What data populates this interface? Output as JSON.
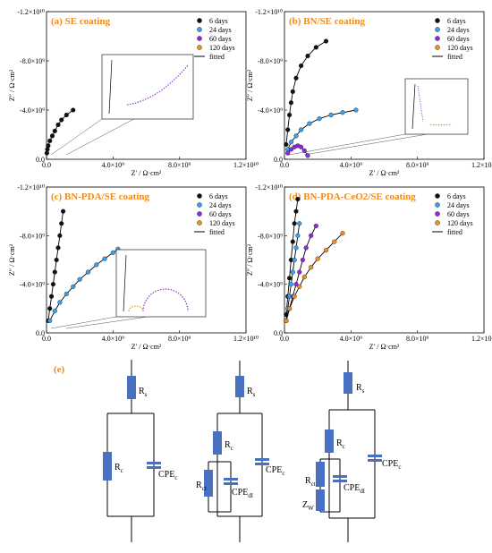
{
  "colors": {
    "6 days": "#111111",
    "24 days": "#3aa0ea",
    "60 days": "#8a2be2",
    "120 days": "#f0901c",
    "title": "#f28a1a",
    "element": "#4a70c4",
    "panel_e_label": "#f28a1a"
  },
  "panels": [
    {
      "id": "a",
      "title_prefix": "(a) ",
      "title_main": "SE coating",
      "legend": [
        "6 days",
        "24 days",
        "60 days",
        "120 days",
        "fitted"
      ]
    },
    {
      "id": "b",
      "title_prefix": "(b) ",
      "title_main": "BN/SE coating",
      "legend": [
        "6 days",
        "24 days",
        "60 days",
        "120 days",
        "fitted"
      ]
    },
    {
      "id": "c",
      "title_prefix": "(c) ",
      "title_main": "BN-PDA/SE coating",
      "legend": [
        "6 days",
        "24 days",
        "60 days",
        "120 days",
        "fitted"
      ]
    },
    {
      "id": "d",
      "title_prefix": "(d) ",
      "title_main": "BN-PDA-CeO2/SE coating",
      "legend": [
        "6 days",
        "24 days",
        "60 days",
        "120 days",
        "fitted"
      ]
    }
  ],
  "axes": {
    "x_ticks": [
      "0.0",
      "4.0×10⁹",
      "8.0×10⁹",
      "1.2×10¹⁰"
    ],
    "y_ticks": [
      "0.0",
      "-4.0×10⁹",
      "-8.0×10⁹",
      "-1.2×10¹⁰"
    ],
    "x_label": "Z′ / Ω·cm²",
    "y_label": "Z″ / Ω·cm²"
  },
  "circuits": {
    "panel_label": "(e)",
    "c1": {
      "rs": "Rs",
      "rc": "Rc",
      "cpec": "CPEc"
    },
    "c2": {
      "rs": "Rs",
      "rc": "Rc",
      "rct": "Rct",
      "cpedl": "CPEdl",
      "cpec": "CPEc"
    },
    "c3": {
      "rs": "Rs",
      "rc": "Rc",
      "rct": "Rct",
      "zw": "ZW",
      "cpedl": "CPEdl",
      "cpec": "CPEc"
    }
  },
  "chart_data": [
    {
      "type": "scatter",
      "title": "(a) SE coating",
      "xlabel": "Z′ / Ω·cm²",
      "ylabel": "Z″ / Ω·cm²",
      "xlim": [
        0,
        12000000000.0
      ],
      "ylim": [
        0,
        -12000000000.0
      ],
      "series": [
        {
          "name": "6 days",
          "x": [
            20000000.0,
            50000000.0,
            100000000.0,
            200000000.0,
            350000000.0,
            500000000.0,
            700000000.0,
            900000000.0,
            1200000000.0,
            1600000000.0
          ],
          "y": [
            -500000000.0,
            -800000000.0,
            -1100000000.0,
            -1500000000.0,
            -1900000000.0,
            -2300000000.0,
            -2800000000.0,
            -3200000000.0,
            -3600000000.0,
            -4000000000.0
          ]
        },
        {
          "name": "24 days",
          "x": [],
          "y": []
        },
        {
          "name": "60 days",
          "x": [],
          "y": []
        },
        {
          "name": "120 days",
          "x": [],
          "y": []
        }
      ]
    },
    {
      "type": "scatter",
      "title": "(b) BN/SE coating",
      "xlabel": "Z′ / Ω·cm²",
      "ylabel": "Z″ / Ω·cm²",
      "xlim": [
        0,
        12000000000.0
      ],
      "ylim": [
        0,
        -12000000000.0
      ],
      "series": [
        {
          "name": "6 days",
          "x": [
            100000000.0,
            200000000.0,
            300000000.0,
            400000000.0,
            500000000.0,
            700000000.0,
            1000000000.0,
            1400000000.0,
            1900000000.0,
            2500000000.0
          ],
          "y": [
            -1200000000.0,
            -2400000000.0,
            -3600000000.0,
            -4600000000.0,
            -5500000000.0,
            -6600000000.0,
            -7600000000.0,
            -8400000000.0,
            -9100000000.0,
            -9600000000.0
          ]
        },
        {
          "name": "24 days",
          "x": [
            200000000.0,
            400000000.0,
            700000000.0,
            1000000000.0,
            1500000000.0,
            2100000000.0,
            2800000000.0,
            3500000000.0,
            4300000000.0
          ],
          "y": [
            -800000000.0,
            -1400000000.0,
            -1900000000.0,
            -2400000000.0,
            -2900000000.0,
            -3300000000.0,
            -3600000000.0,
            -3800000000.0,
            -4000000000.0
          ]
        },
        {
          "name": "60 days",
          "x": [
            200000000.0,
            400000000.0,
            600000000.0,
            800000000.0,
            1000000000.0,
            1200000000.0,
            1400000000.0
          ],
          "y": [
            -500000000.0,
            -800000000.0,
            -1000000000.0,
            -1100000000.0,
            -1000000000.0,
            -700000000.0,
            -300000000.0
          ]
        },
        {
          "name": "120 days",
          "x": [],
          "y": []
        }
      ]
    },
    {
      "type": "scatter",
      "title": "(c) BN-PDA/SE coating",
      "xlabel": "Z′ / Ω·cm²",
      "ylabel": "Z″ / Ω·cm²",
      "xlim": [
        0,
        12000000000.0
      ],
      "ylim": [
        0,
        -12000000000.0
      ],
      "series": [
        {
          "name": "6 days",
          "x": [
            100000000.0,
            200000000.0,
            300000000.0,
            400000000.0,
            500000000.0,
            600000000.0,
            700000000.0,
            800000000.0,
            900000000.0,
            1000000000.0
          ],
          "y": [
            -1000000000.0,
            -2000000000.0,
            -3000000000.0,
            -4000000000.0,
            -5000000000.0,
            -6000000000.0,
            -7000000000.0,
            -8000000000.0,
            -9000000000.0,
            -10000000000.0
          ]
        },
        {
          "name": "24 days",
          "x": [
            200000000.0,
            500000000.0,
            800000000.0,
            1200000000.0,
            1600000000.0,
            2000000000.0,
            2500000000.0,
            3000000000.0,
            3500000000.0,
            4000000000.0,
            4300000000.0
          ],
          "y": [
            -1000000000.0,
            -1800000000.0,
            -2500000000.0,
            -3200000000.0,
            -3800000000.0,
            -4400000000.0,
            -5000000000.0,
            -5600000000.0,
            -6100000000.0,
            -6600000000.0,
            -6900000000.0
          ]
        },
        {
          "name": "60 days",
          "x": [],
          "y": []
        },
        {
          "name": "120 days",
          "x": [],
          "y": []
        }
      ]
    },
    {
      "type": "scatter",
      "title": "(d) BN-PDA-CeO2/SE coating",
      "xlabel": "Z′ / Ω·cm²",
      "ylabel": "Z″ / Ω·cm²",
      "xlim": [
        0,
        12000000000.0
      ],
      "ylim": [
        0,
        -12000000000.0
      ],
      "series": [
        {
          "name": "6 days",
          "x": [
            100000000.0,
            200000000.0,
            300000000.0,
            400000000.0,
            500000000.0,
            600000000.0,
            700000000.0,
            800000000.0
          ],
          "y": [
            -1500000000.0,
            -3000000000.0,
            -4500000000.0,
            -6000000000.0,
            -7500000000.0,
            -9000000000.0,
            -10000000000.0,
            -11000000000.0
          ]
        },
        {
          "name": "24 days",
          "x": [
            100000000.0,
            200000000.0,
            300000000.0,
            400000000.0,
            500000000.0,
            600000000.0,
            700000000.0,
            800000000.0,
            900000000.0
          ],
          "y": [
            -1000000000.0,
            -2000000000.0,
            -3000000000.0,
            -4000000000.0,
            -5000000000.0,
            -6000000000.0,
            -7000000000.0,
            -8000000000.0,
            -9000000000.0
          ]
        },
        {
          "name": "60 days",
          "x": [
            100000000.0,
            300000000.0,
            500000000.0,
            700000000.0,
            900000000.0,
            1100000000.0,
            1300000000.0,
            1600000000.0,
            1900000000.0
          ],
          "y": [
            -1000000000.0,
            -2000000000.0,
            -3000000000.0,
            -4000000000.0,
            -5000000000.0,
            -6000000000.0,
            -7000000000.0,
            -8000000000.0,
            -8800000000.0
          ]
        },
        {
          "name": "120 days",
          "x": [
            100000000.0,
            300000000.0,
            600000000.0,
            900000000.0,
            1200000000.0,
            1600000000.0,
            2000000000.0,
            2500000000.0,
            3000000000.0,
            3500000000.0
          ],
          "y": [
            -1000000000.0,
            -2000000000.0,
            -3000000000.0,
            -3800000000.0,
            -4600000000.0,
            -5400000000.0,
            -6100000000.0,
            -6800000000.0,
            -7500000000.0,
            -8200000000.0
          ]
        }
      ]
    }
  ]
}
